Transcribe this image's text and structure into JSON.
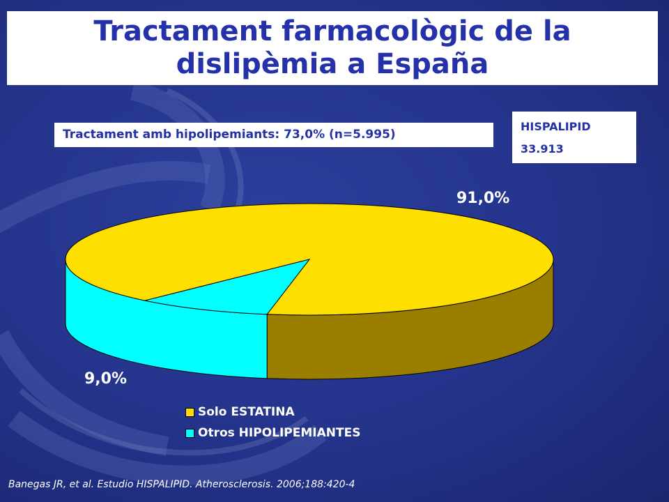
{
  "slide": {
    "title_line1": "Tractament  farmacològic de la",
    "title_line2": "dislipèmia a España",
    "subtitle": "Tractament amb hipolipemiants: 73,0% (n=5.995)",
    "study_name": "HISPALIPID",
    "study_n": "33.913",
    "citation": "Banegas JR, et al. Estudio HISPALIPID. Atherosclerosis. 2006;188:420-4"
  },
  "colors": {
    "background": "#24338a",
    "title_text": "#2531a8",
    "slice_top_1": "#ffdf00",
    "slice_side_1": "#9a7e00",
    "slice_top_2": "#00ffff"
  },
  "chart_data": {
    "type": "pie",
    "style": "3d",
    "categories": [
      "Solo ESTATINA",
      "Otros HIPOLIPEMIANTES"
    ],
    "values": [
      91.0,
      9.0
    ],
    "data_labels": [
      "91,0%",
      "9,0%"
    ],
    "colors": [
      "#ffdf00",
      "#00ffff"
    ],
    "legend_placement": "bottom"
  }
}
